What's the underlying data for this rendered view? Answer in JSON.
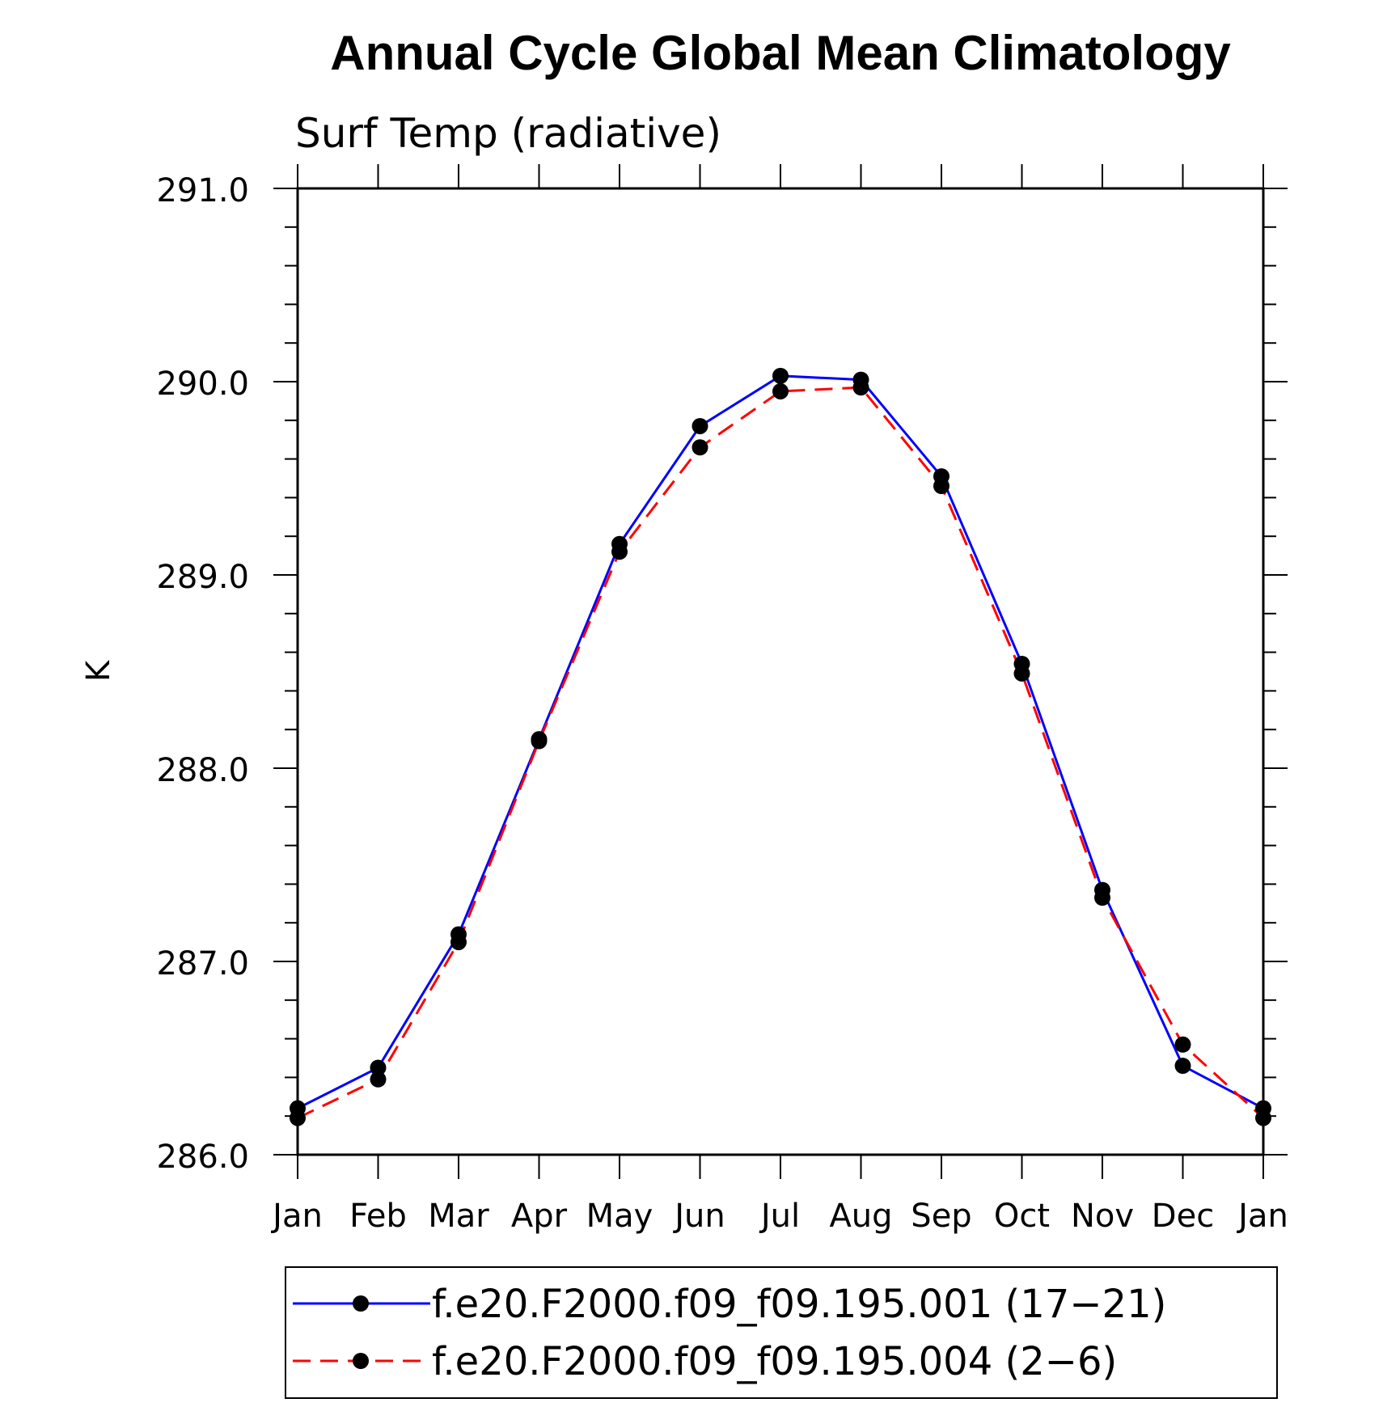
{
  "chart_data": {
    "type": "line",
    "title": "Annual Cycle Global Mean Climatology",
    "subtitle": "Surf Temp (radiative)",
    "xlabel": "",
    "ylabel": "K",
    "categories": [
      "Jan",
      "Feb",
      "Mar",
      "Apr",
      "May",
      "Jun",
      "Jul",
      "Aug",
      "Sep",
      "Oct",
      "Nov",
      "Dec",
      "Jan"
    ],
    "ylim": [
      286.0,
      291.0
    ],
    "yticks": [
      "286.0",
      "287.0",
      "288.0",
      "289.0",
      "290.0",
      "291.0"
    ],
    "series": [
      {
        "name": "f.e20.F2000.f09_f09.195.001 (17−21)",
        "color": "#0000ff",
        "dash": "solid",
        "values": [
          286.24,
          286.45,
          287.14,
          288.15,
          289.16,
          289.77,
          290.03,
          290.01,
          289.51,
          288.54,
          287.37,
          286.46,
          286.24
        ]
      },
      {
        "name": "f.e20.F2000.f09_f09.195.004 (2−6)",
        "color": "#ff0000",
        "dash": "dashed",
        "values": [
          286.19,
          286.39,
          287.1,
          288.14,
          289.12,
          289.66,
          289.95,
          289.97,
          289.46,
          288.49,
          287.33,
          286.57,
          286.19
        ]
      }
    ],
    "legend_position": "bottom"
  }
}
